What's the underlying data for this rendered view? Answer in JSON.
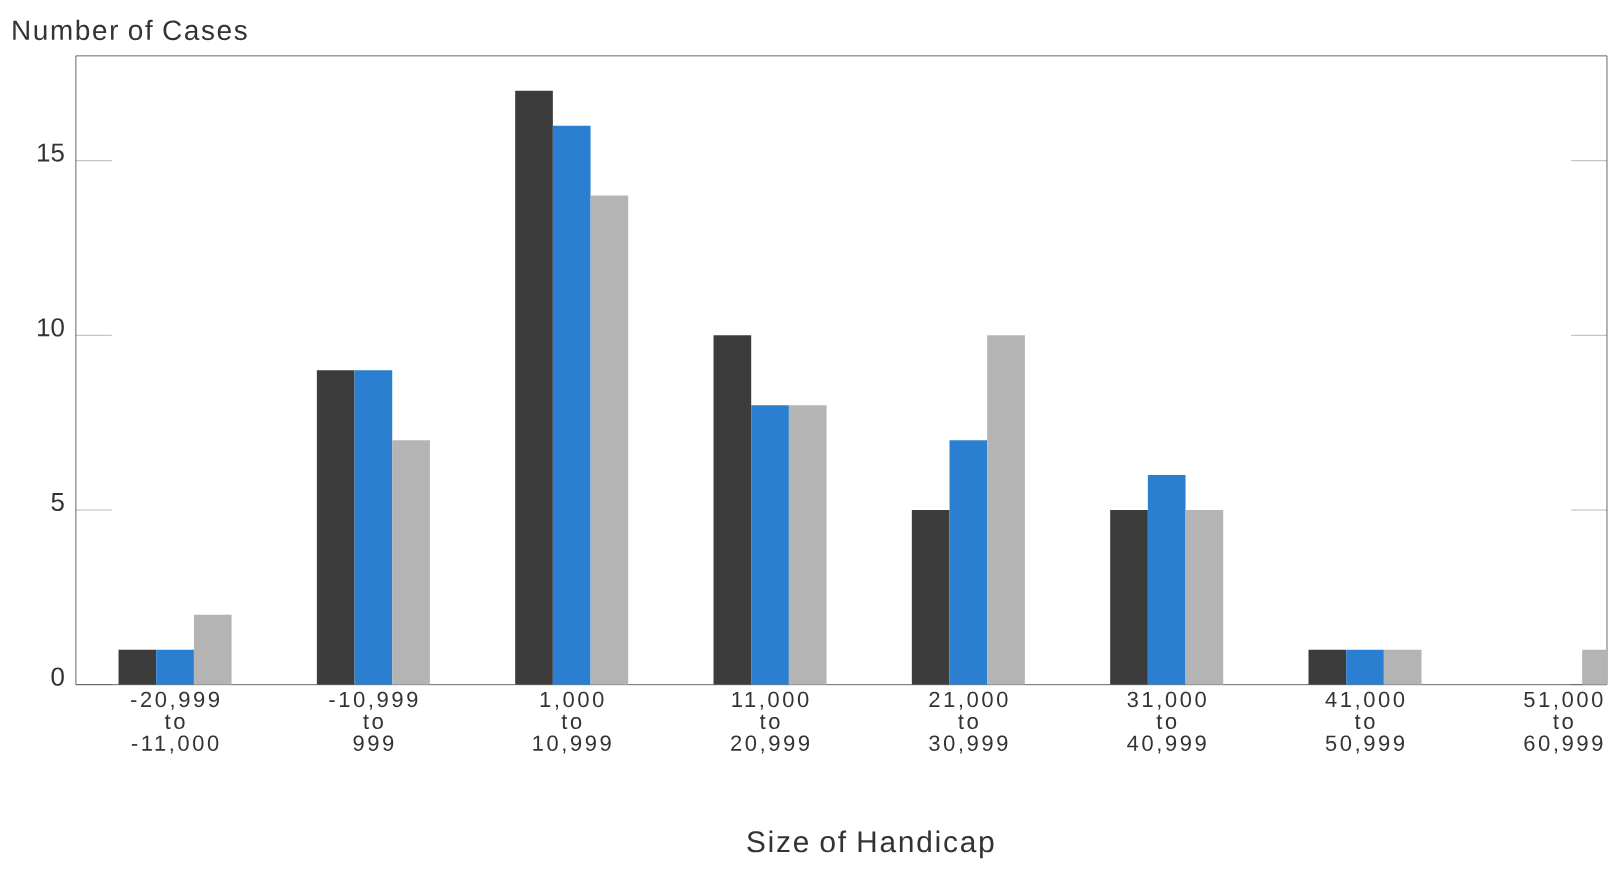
{
  "chart_data": {
    "type": "bar",
    "ylabel": "Number of Cases",
    "xlabel": "Size of Handicap",
    "categories": [
      "-20,999\nto\n-11,000",
      "-10,999\nto\n999",
      "1,000\nto\n10,999",
      "11,000\nto\n20,999",
      "21,000\nto\n30,999",
      "31,000\nto\n40,999",
      "41,000\nto\n50,999",
      "51,000\nto\n60,999"
    ],
    "series": [
      {
        "color": "#3c3c3c",
        "values": [
          1,
          9,
          17,
          10,
          5,
          5,
          1,
          0
        ]
      },
      {
        "color": "#2a7fd0",
        "values": [
          1,
          9,
          16,
          8,
          7,
          6,
          1,
          0
        ]
      },
      {
        "color": "#b4b4b4",
        "values": [
          2,
          7,
          14,
          8,
          10,
          5,
          1,
          1
        ]
      }
    ],
    "ylim": [
      0,
      18
    ],
    "yticks": [
      0,
      5,
      10,
      15
    ]
  }
}
